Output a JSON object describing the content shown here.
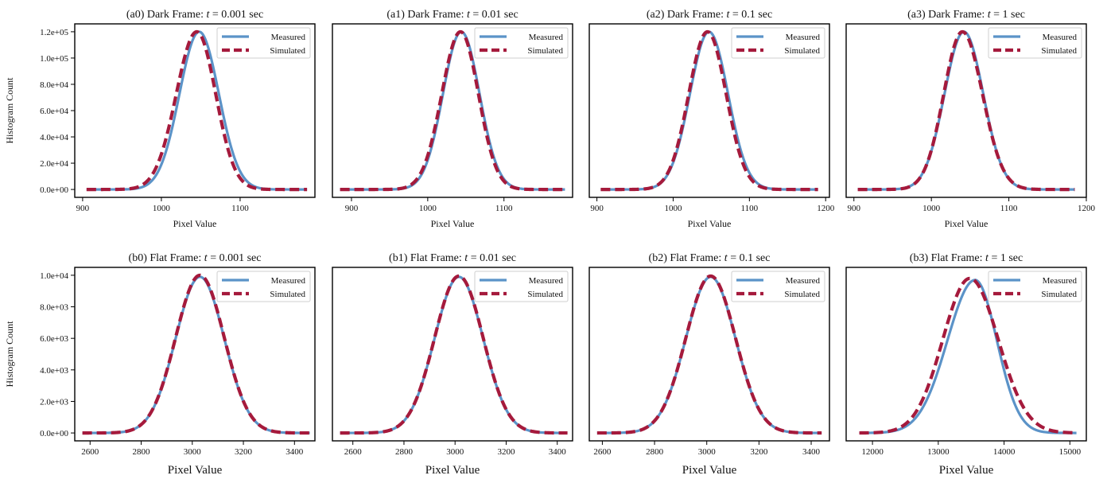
{
  "figure": {
    "colors": {
      "measured": "#5b93c8",
      "simulated": "#a51a3c"
    }
  },
  "chart_data": [
    {
      "id": "a0",
      "type": "line",
      "title": "(a0) Dark Frame: t = 0.001 sec",
      "title_prefix": "(a0) Dark Frame: ",
      "title_var": "t",
      "title_value": " = 0.001 sec",
      "xlabel": "Pixel Value",
      "ylabel": "Histogram Count",
      "xlim": [
        890,
        1195
      ],
      "ylim": [
        -6000,
        126000
      ],
      "xticks": [
        900,
        1000,
        1100
      ],
      "xticklabels": [
        "900",
        "1000",
        "1100"
      ],
      "yticks": [
        0,
        20000,
        40000,
        60000,
        80000,
        100000,
        120000
      ],
      "yticklabels": [
        "0.0e+00",
        "2.0e+04",
        "4.0e+04",
        "6.0e+04",
        "8.0e+04",
        "1.0e+05",
        "1.2e+05"
      ],
      "x_range": [
        905,
        1185
      ],
      "legend": [
        "Measured",
        "Simulated"
      ],
      "legend_loc": "top-right",
      "series": [
        {
          "name": "Measured",
          "peak_x": 1048,
          "peak_y": 120000,
          "sigma_left": 25,
          "sigma_right": 25
        },
        {
          "name": "Simulated",
          "peak_x": 1045,
          "peak_y": 120000,
          "sigma_left": 26,
          "sigma_right": 24
        }
      ]
    },
    {
      "id": "a1",
      "type": "line",
      "title": "(a1) Dark Frame: t = 0.01 sec",
      "title_prefix": "(a1) Dark Frame: ",
      "title_var": "t",
      "title_value": " = 0.01 sec",
      "xlabel": "Pixel Value",
      "ylabel": "",
      "xlim": [
        875,
        1190
      ],
      "ylim": [
        -6000,
        126000
      ],
      "xticks": [
        900,
        1000,
        1100
      ],
      "xticklabels": [
        "900",
        "1000",
        "1100"
      ],
      "yticks": [],
      "yticklabels": [],
      "x_range": [
        885,
        1180
      ],
      "legend": [
        "Measured",
        "Simulated"
      ],
      "legend_loc": "top-right",
      "series": [
        {
          "name": "Measured",
          "peak_x": 1044,
          "peak_y": 120000,
          "sigma_left": 24,
          "sigma_right": 24
        },
        {
          "name": "Simulated",
          "peak_x": 1043,
          "peak_y": 120000,
          "sigma_left": 24.5,
          "sigma_right": 23.5
        }
      ]
    },
    {
      "id": "a2",
      "type": "line",
      "title": "(a2) Dark Frame: t = 0.1 sec",
      "title_prefix": "(a2) Dark Frame: ",
      "title_var": "t",
      "title_value": " = 0.1 sec",
      "xlabel": "Pixel Value",
      "ylabel": "",
      "xlim": [
        890,
        1205
      ],
      "ylim": [
        -6000,
        126000
      ],
      "xticks": [
        900,
        1000,
        1100,
        1200
      ],
      "xticklabels": [
        "900",
        "1000",
        "1100",
        "1200"
      ],
      "yticks": [],
      "yticklabels": [],
      "x_range": [
        905,
        1190
      ],
      "legend": [
        "Measured",
        "Simulated"
      ],
      "legend_loc": "top-right",
      "series": [
        {
          "name": "Measured",
          "peak_x": 1047,
          "peak_y": 120000,
          "sigma_left": 25,
          "sigma_right": 25
        },
        {
          "name": "Simulated",
          "peak_x": 1045,
          "peak_y": 120000,
          "sigma_left": 24.5,
          "sigma_right": 24.5
        }
      ]
    },
    {
      "id": "a3",
      "type": "line",
      "title": "(a3) Dark Frame: t = 1 sec",
      "title_prefix": "(a3) Dark Frame: ",
      "title_var": "t",
      "title_value": " = 1 sec",
      "xlabel": "Pixel Value",
      "ylabel": "",
      "xlim": [
        890,
        1200
      ],
      "ylim": [
        -6000,
        126000
      ],
      "xticks": [
        900,
        1000,
        1100,
        1200
      ],
      "xticklabels": [
        "900",
        "1000",
        "1100",
        "1200"
      ],
      "yticks": [],
      "yticklabels": [],
      "x_range": [
        905,
        1185
      ],
      "legend": [
        "Measured",
        "Simulated"
      ],
      "legend_loc": "top-right",
      "series": [
        {
          "name": "Measured",
          "peak_x": 1042,
          "peak_y": 120000,
          "sigma_left": 25,
          "sigma_right": 25
        },
        {
          "name": "Simulated",
          "peak_x": 1040,
          "peak_y": 120000,
          "sigma_left": 24,
          "sigma_right": 26
        }
      ]
    },
    {
      "id": "b0",
      "type": "line",
      "title": "(b0) Flat Frame: t = 0.001 sec",
      "title_prefix": "(b0) Flat Frame: ",
      "title_var": "t",
      "title_value": " = 0.001 sec",
      "xlabel": "Pixel Value",
      "ylabel": "Histogram Count",
      "xlim": [
        2540,
        3480
      ],
      "ylim": [
        -500,
        10500
      ],
      "xticks": [
        2600,
        2800,
        3000,
        3200,
        3400
      ],
      "xticklabels": [
        "2600",
        "2800",
        "3000",
        "3200",
        "3400"
      ],
      "yticks": [
        0,
        2000,
        4000,
        6000,
        8000,
        10000
      ],
      "yticklabels": [
        "0.0e+00",
        "2.0e+03",
        "4.0e+03",
        "6.0e+03",
        "8.0e+03",
        "1.0e+04"
      ],
      "x_range": [
        2570,
        3460
      ],
      "legend": [
        "Measured",
        "Simulated"
      ],
      "legend_loc": "top-right",
      "series": [
        {
          "name": "Measured",
          "peak_x": 3030,
          "peak_y": 9900,
          "sigma_left": 95,
          "sigma_right": 95
        },
        {
          "name": "Simulated",
          "peak_x": 3030,
          "peak_y": 10000,
          "sigma_left": 95,
          "sigma_right": 95
        }
      ]
    },
    {
      "id": "b1",
      "type": "line",
      "title": "(b1) Flat Frame: t = 0.01 sec",
      "title_prefix": "(b1) Flat Frame: ",
      "title_var": "t",
      "title_value": " = 0.01 sec",
      "xlabel": "Pixel Value",
      "ylabel": "",
      "xlim": [
        2520,
        3460
      ],
      "ylim": [
        -500,
        10500
      ],
      "xticks": [
        2600,
        2800,
        3000,
        3200,
        3400
      ],
      "xticklabels": [
        "2600",
        "2800",
        "3000",
        "3200",
        "3400"
      ],
      "yticks": [],
      "yticklabels": [],
      "x_range": [
        2550,
        3440
      ],
      "legend": [
        "Measured",
        "Simulated"
      ],
      "legend_loc": "top-right",
      "series": [
        {
          "name": "Measured",
          "peak_x": 3015,
          "peak_y": 9900,
          "sigma_left": 95,
          "sigma_right": 95
        },
        {
          "name": "Simulated",
          "peak_x": 3015,
          "peak_y": 9950,
          "sigma_left": 95,
          "sigma_right": 95
        }
      ]
    },
    {
      "id": "b2",
      "type": "line",
      "title": "(b2) Flat Frame: t = 0.1 sec",
      "title_prefix": "(b2) Flat Frame: ",
      "title_var": "t",
      "title_value": " = 0.1 sec",
      "xlabel": "Pixel Value",
      "ylabel": "",
      "xlim": [
        2550,
        3470
      ],
      "ylim": [
        -500,
        10500
      ],
      "xticks": [
        2600,
        2800,
        3000,
        3200,
        3400
      ],
      "xticklabels": [
        "2600",
        "2800",
        "3000",
        "3200",
        "3400"
      ],
      "yticks": [],
      "yticklabels": [],
      "x_range": [
        2580,
        3440
      ],
      "legend": [
        "Measured",
        "Simulated"
      ],
      "legend_loc": "top-right",
      "series": [
        {
          "name": "Measured",
          "peak_x": 3015,
          "peak_y": 9900,
          "sigma_left": 95,
          "sigma_right": 95
        },
        {
          "name": "Simulated",
          "peak_x": 3015,
          "peak_y": 9950,
          "sigma_left": 95,
          "sigma_right": 95
        }
      ]
    },
    {
      "id": "b3",
      "type": "line",
      "title": "(b3) Flat Frame: t = 1 sec",
      "title_prefix": "(b3) Flat Frame: ",
      "title_var": "t",
      "title_value": " = 1 sec",
      "xlabel": "Pixel Value",
      "ylabel": "",
      "xlim": [
        11600,
        15250
      ],
      "ylim": [
        -500,
        10500
      ],
      "xticks": [
        12000,
        13000,
        14000,
        15000
      ],
      "xticklabels": [
        "12000",
        "13000",
        "14000",
        "15000"
      ],
      "yticks": [],
      "yticklabels": [],
      "x_range": [
        11800,
        15100
      ],
      "legend": [
        "Measured",
        "Simulated"
      ],
      "legend_loc": "top-right",
      "series": [
        {
          "name": "Measured",
          "peak_x": 13560,
          "peak_y": 9700,
          "sigma_left": 420,
          "sigma_right": 330
        },
        {
          "name": "Simulated",
          "peak_x": 13480,
          "peak_y": 9800,
          "sigma_left": 410,
          "sigma_right": 430
        }
      ]
    }
  ]
}
